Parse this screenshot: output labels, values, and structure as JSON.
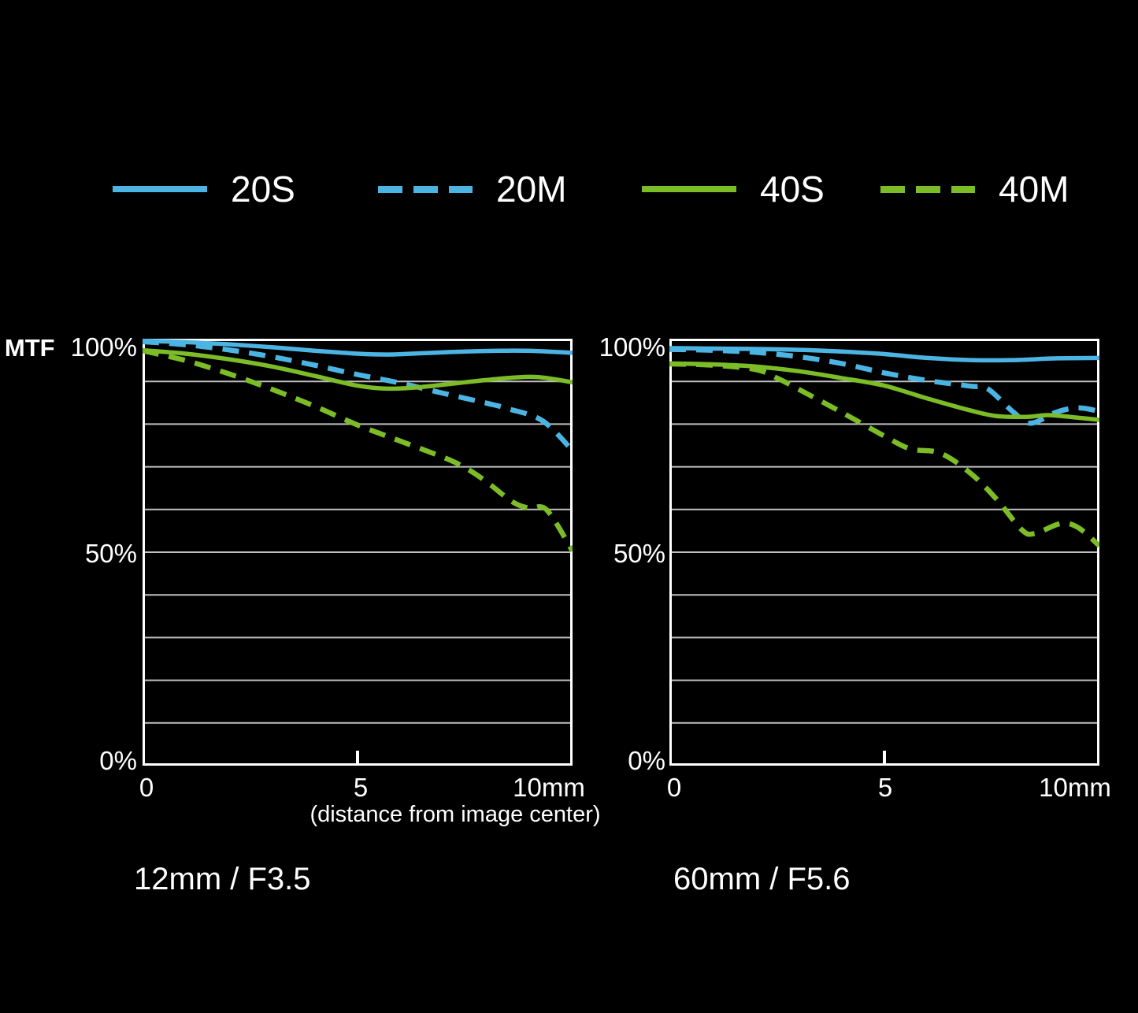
{
  "legend": [
    {
      "label": "20S",
      "color": "#4cb4e2",
      "dashed": false
    },
    {
      "label": "20M",
      "color": "#4cb4e2",
      "dashed": true
    },
    {
      "label": "40S",
      "color": "#7cbc27",
      "dashed": false
    },
    {
      "label": "40M",
      "color": "#7cbc27",
      "dashed": true
    }
  ],
  "axis": {
    "mtf_label": "MTF",
    "y_tick_labels": [
      "100%",
      "50%",
      "0%"
    ],
    "x_tick_labels": [
      "0",
      "5",
      "10mm"
    ],
    "x_caption": "(distance from image center)"
  },
  "colors": {
    "background": "#000000",
    "frame": "#ffffff",
    "grid": "#c0c0c0",
    "text": "#ffffff",
    "blue": "#4cb4e2",
    "green": "#7cbc27"
  },
  "chart_data": [
    {
      "type": "line",
      "title": "12mm / F3.5",
      "xlabel": "(distance from image center)",
      "ylabel": "MTF",
      "xlim": [
        0,
        10
      ],
      "ylim": [
        0,
        100
      ],
      "x_tick_labels": [
        "0",
        "5",
        "10mm"
      ],
      "y_tick_labels": [
        "100%",
        "50%",
        "0%"
      ],
      "grid": "horizontal lines every 10%",
      "legend_position": "top",
      "series": [
        {
          "name": "20S",
          "color": "#4cb4e2",
          "dashed": false,
          "points": [
            [
              0,
              99.5
            ],
            [
              1,
              99.2
            ],
            [
              2,
              98.7
            ],
            [
              3,
              98.0
            ],
            [
              4,
              97.2
            ],
            [
              5,
              96.5
            ],
            [
              5.7,
              96.3
            ],
            [
              6.5,
              96.6
            ],
            [
              7.5,
              97.0
            ],
            [
              8.5,
              97.2
            ],
            [
              9.2,
              97.1
            ],
            [
              10,
              96.7
            ]
          ]
        },
        {
          "name": "20M",
          "color": "#4cb4e2",
          "dashed": true,
          "points": [
            [
              0,
              99.3
            ],
            [
              1,
              98.6
            ],
            [
              2,
              97.4
            ],
            [
              3,
              95.8
            ],
            [
              4,
              93.8
            ],
            [
              5,
              91.6
            ],
            [
              6,
              89.6
            ],
            [
              7,
              87.2
            ],
            [
              8,
              84.9
            ],
            [
              8.5,
              83.6
            ],
            [
              9.3,
              80.8
            ],
            [
              10,
              73.8
            ]
          ]
        },
        {
          "name": "40S",
          "color": "#7cbc27",
          "dashed": false,
          "points": [
            [
              0,
              97.3
            ],
            [
              1,
              96.5
            ],
            [
              2,
              95.2
            ],
            [
              3,
              93.5
            ],
            [
              4,
              91.3
            ],
            [
              5,
              89.0
            ],
            [
              5.7,
              88.3
            ],
            [
              6.5,
              88.7
            ],
            [
              7.5,
              89.8
            ],
            [
              8.5,
              90.8
            ],
            [
              9.2,
              91.0
            ],
            [
              10,
              89.8
            ]
          ]
        },
        {
          "name": "40M",
          "color": "#7cbc27",
          "dashed": true,
          "points": [
            [
              0,
              97.2
            ],
            [
              1,
              94.9
            ],
            [
              2,
              91.8
            ],
            [
              3,
              88.2
            ],
            [
              4,
              84.2
            ],
            [
              5,
              79.8
            ],
            [
              6,
              76.0
            ],
            [
              7,
              72.2
            ],
            [
              7.5,
              69.8
            ],
            [
              8,
              66.5
            ],
            [
              8.6,
              61.8
            ],
            [
              9,
              60.3
            ],
            [
              9.4,
              59.9
            ],
            [
              10,
              50.3
            ]
          ]
        }
      ]
    },
    {
      "type": "line",
      "title": "60mm / F5.6",
      "xlabel": "",
      "ylabel": "MTF",
      "xlim": [
        0,
        10
      ],
      "ylim": [
        0,
        100
      ],
      "x_tick_labels": [
        "0",
        "5",
        "10mm"
      ],
      "y_tick_labels": [
        "100%",
        "50%",
        "0%"
      ],
      "grid": "horizontal lines every 10%",
      "legend_position": "top",
      "series": [
        {
          "name": "20S",
          "color": "#4cb4e2",
          "dashed": false,
          "points": [
            [
              0,
              97.8
            ],
            [
              1,
              97.7
            ],
            [
              2,
              97.6
            ],
            [
              3,
              97.4
            ],
            [
              4,
              97.0
            ],
            [
              5,
              96.4
            ],
            [
              6,
              95.5
            ],
            [
              7,
              95.0
            ],
            [
              8,
              95.0
            ],
            [
              9,
              95.4
            ],
            [
              10,
              95.5
            ]
          ]
        },
        {
          "name": "20M",
          "color": "#4cb4e2",
          "dashed": true,
          "points": [
            [
              0,
              97.5
            ],
            [
              1,
              97.3
            ],
            [
              2,
              96.8
            ],
            [
              3,
              95.8
            ],
            [
              4,
              94.2
            ],
            [
              5,
              92.0
            ],
            [
              6,
              90.2
            ],
            [
              7,
              88.9
            ],
            [
              7.4,
              88.3
            ],
            [
              8,
              82.8
            ],
            [
              8.4,
              80.2
            ],
            [
              9,
              82.8
            ],
            [
              9.5,
              83.8
            ],
            [
              10,
              83.0
            ]
          ]
        },
        {
          "name": "40S",
          "color": "#7cbc27",
          "dashed": false,
          "points": [
            [
              0,
              94.2
            ],
            [
              1,
              94.0
            ],
            [
              2,
              93.5
            ],
            [
              3,
              92.4
            ],
            [
              4,
              90.8
            ],
            [
              5,
              89.0
            ],
            [
              6,
              86.0
            ],
            [
              7,
              83.2
            ],
            [
              7.6,
              81.9
            ],
            [
              8.3,
              81.7
            ],
            [
              8.8,
              82.1
            ],
            [
              9.4,
              81.6
            ],
            [
              10,
              81.0
            ]
          ]
        },
        {
          "name": "40M",
          "color": "#7cbc27",
          "dashed": true,
          "points": [
            [
              0,
              94.1
            ],
            [
              1,
              93.8
            ],
            [
              2,
              92.8
            ],
            [
              2.5,
              90.8
            ],
            [
              3,
              88.2
            ],
            [
              4,
              82.8
            ],
            [
              5,
              77.2
            ],
            [
              5.6,
              74.2
            ],
            [
              6.3,
              73.2
            ],
            [
              7,
              68.5
            ],
            [
              7.6,
              62.5
            ],
            [
              8.2,
              55.2
            ],
            [
              8.5,
              54.4
            ],
            [
              9.1,
              56.7
            ],
            [
              9.5,
              55.8
            ],
            [
              10,
              51.5
            ]
          ]
        }
      ]
    }
  ]
}
